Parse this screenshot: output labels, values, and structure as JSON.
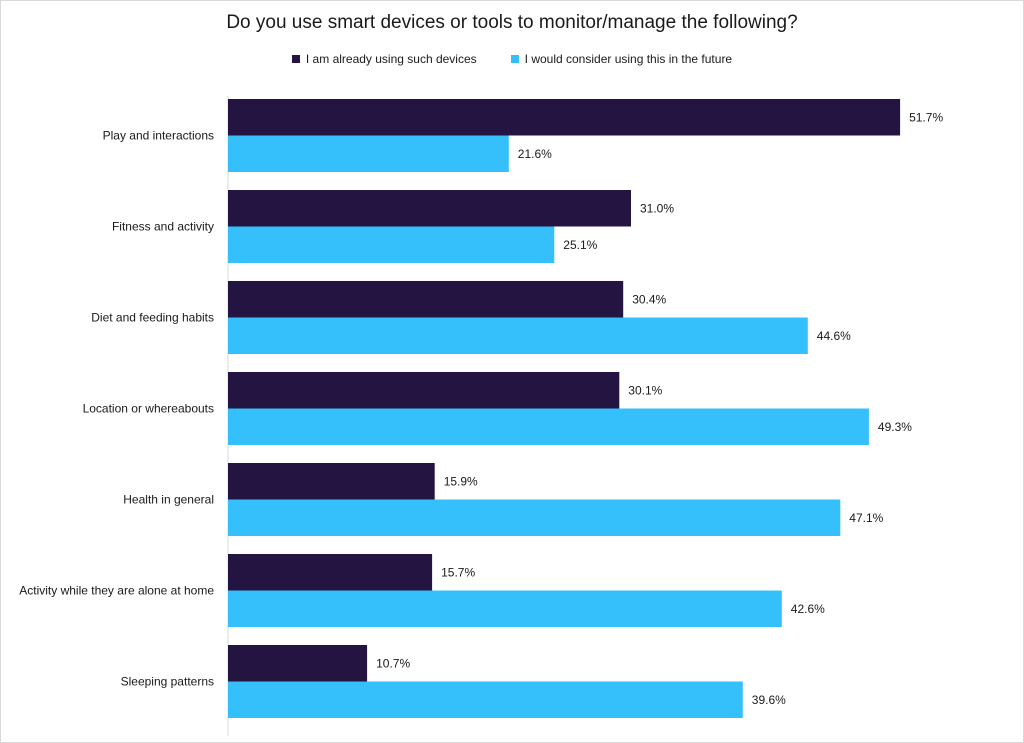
{
  "chart_data": {
    "type": "bar",
    "orientation": "horizontal",
    "title": "Do you use smart devices or tools to monitor/manage the following?",
    "categories": [
      "Play and interactions",
      "Fitness and activity",
      "Diet and feeding habits",
      "Location or whereabouts",
      "Health in general",
      "Activity while they are alone at home",
      "Sleeping patterns"
    ],
    "series": [
      {
        "name": "I am already using such devices",
        "color": "#231442",
        "values": [
          51.7,
          31.0,
          30.4,
          30.1,
          15.9,
          15.7,
          10.7
        ],
        "labels": [
          "51.7%",
          "31.0%",
          "30.4%",
          "30.1%",
          "15.9%",
          "15.7%",
          "10.7%"
        ]
      },
      {
        "name": "I would consider using this in the future",
        "color": "#36c0fb",
        "values": [
          21.6,
          25.1,
          44.6,
          49.3,
          47.1,
          42.6,
          39.6
        ],
        "labels": [
          "21.6%",
          "25.1%",
          "44.6%",
          "49.3%",
          "47.1%",
          "42.6%",
          "39.6%"
        ]
      }
    ],
    "xlabel": "",
    "ylabel": "",
    "xlim": [
      0,
      60
    ],
    "grid": false,
    "legend_position": "top"
  }
}
